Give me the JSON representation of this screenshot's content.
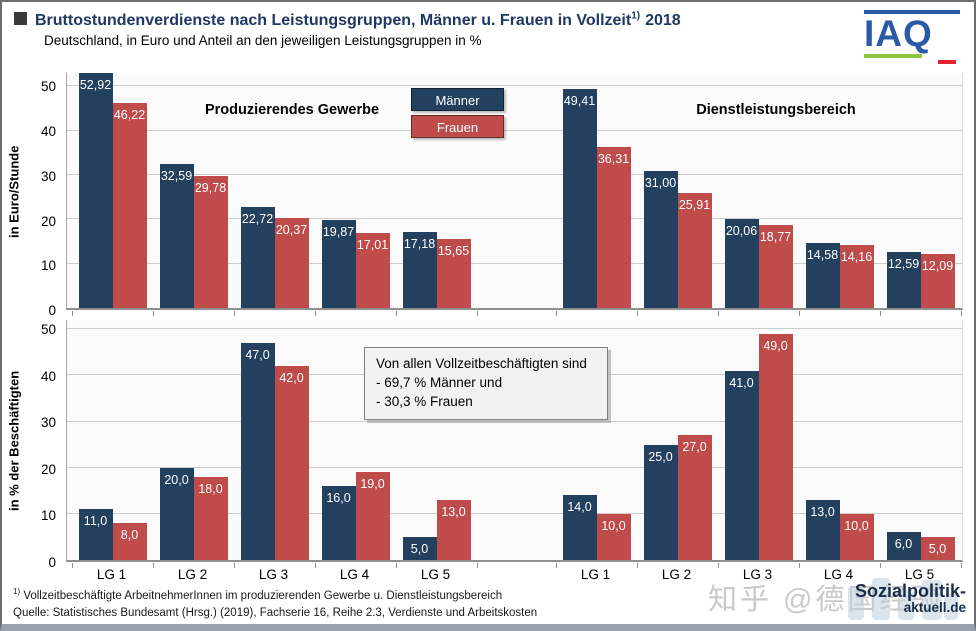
{
  "header": {
    "title": "Bruttostundenverdienste nach Leistungsgruppen, Männer u. Frauen in Vollzeit",
    "title_sup": "1)",
    "title_year": "2018",
    "subtitle": "Deutschland, in Euro und Anteil an den jeweiligen Leistungsgruppen in %",
    "logo_text": "IAQ"
  },
  "colors": {
    "bar_maenner": "#24405F",
    "bar_frauen": "#C04B4B",
    "title_navy": "#1F3864",
    "iaq_blue": "#2B5BA8",
    "iaq_green": "#8CC63F",
    "iaq_red": "#E32230"
  },
  "legend": {
    "items": [
      {
        "label": "Männer",
        "color": "#24405F"
      },
      {
        "label": "Frauen",
        "color": "#C04B4B"
      }
    ]
  },
  "annotation": {
    "lines": [
      "Von allen Vollzeitbeschäftigten sind",
      "- 69,7 % Männer und",
      "- 30,3 % Frauen"
    ]
  },
  "chart_data": [
    {
      "type": "bar",
      "title": "",
      "ylabel": "in Euro/Stunde",
      "ylim": [
        0,
        53
      ],
      "yticks": [
        0,
        10,
        20,
        30,
        40,
        50
      ],
      "grid": true,
      "legend_position": "top-center",
      "categories": [
        "LG 1",
        "LG 2",
        "LG 3",
        "LG 4",
        "LG 5"
      ],
      "show_x_labels": false,
      "sectors": [
        {
          "title": "Produzierendes Gewerbe",
          "series": [
            {
              "name": "Männer",
              "values": [
                52.92,
                32.59,
                22.72,
                19.87,
                17.18
              ],
              "labels": [
                "52,92",
                "32,59",
                "22,72",
                "19,87",
                "17,18"
              ]
            },
            {
              "name": "Frauen",
              "values": [
                46.22,
                29.78,
                20.37,
                17.01,
                15.65
              ],
              "labels": [
                "46,22",
                "29,78",
                "20,37",
                "17,01",
                "15,65"
              ]
            }
          ]
        },
        {
          "title": "Dienstleistungsbereich",
          "series": [
            {
              "name": "Männer",
              "values": [
                49.41,
                31.0,
                20.06,
                14.58,
                12.59
              ],
              "labels": [
                "49,41",
                "31,00",
                "20,06",
                "14,58",
                "12,59"
              ]
            },
            {
              "name": "Frauen",
              "values": [
                36.31,
                25.91,
                18.77,
                14.16,
                12.09
              ],
              "labels": [
                "36,31",
                "25,91",
                "18,77",
                "14,16",
                "12,09"
              ]
            }
          ]
        }
      ]
    },
    {
      "type": "bar",
      "title": "",
      "ylabel": "in % der Beschäftigten",
      "ylim": [
        0,
        52
      ],
      "yticks": [
        0,
        10,
        20,
        30,
        40,
        50
      ],
      "grid": true,
      "categories": [
        "LG 1",
        "LG 2",
        "LG 3",
        "LG 4",
        "LG 5"
      ],
      "show_x_labels": true,
      "sectors": [
        {
          "title": "",
          "series": [
            {
              "name": "Männer",
              "values": [
                11.0,
                20.0,
                47.0,
                16.0,
                5.0
              ],
              "labels": [
                "11,0",
                "20,0",
                "47,0",
                "16,0",
                "5,0"
              ]
            },
            {
              "name": "Frauen",
              "values": [
                8.0,
                18.0,
                42.0,
                19.0,
                13.0
              ],
              "labels": [
                "8,0",
                "18,0",
                "42,0",
                "19,0",
                "13,0"
              ]
            }
          ]
        },
        {
          "title": "",
          "series": [
            {
              "name": "Männer",
              "values": [
                14.0,
                25.0,
                41.0,
                13.0,
                6.0
              ],
              "labels": [
                "14,0",
                "25,0",
                "41,0",
                "13,0",
                "6,0"
              ]
            },
            {
              "name": "Frauen",
              "values": [
                10.0,
                27.0,
                49.0,
                10.0,
                5.0
              ],
              "labels": [
                "10,0",
                "27,0",
                "49,0",
                "10,0",
                "5,0"
              ]
            }
          ]
        }
      ]
    }
  ],
  "footer": {
    "footnote_sup": "1)",
    "footnote_text": " Vollzeitbeschäftigte ArbeitnehmerInnen im produzierenden Gewerbe u. Dienstleistungsbereich",
    "source": "Quelle: Statistisches Bundesamt (Hrsg.) (2019), Fachserie 16, Reihe 2.3, Verdienste und Arbeitskosten"
  },
  "watermark": "知乎 @德国经验",
  "logo_bottom": {
    "line1": "Sozialpolitik-",
    "line2": "aktuell.de"
  }
}
